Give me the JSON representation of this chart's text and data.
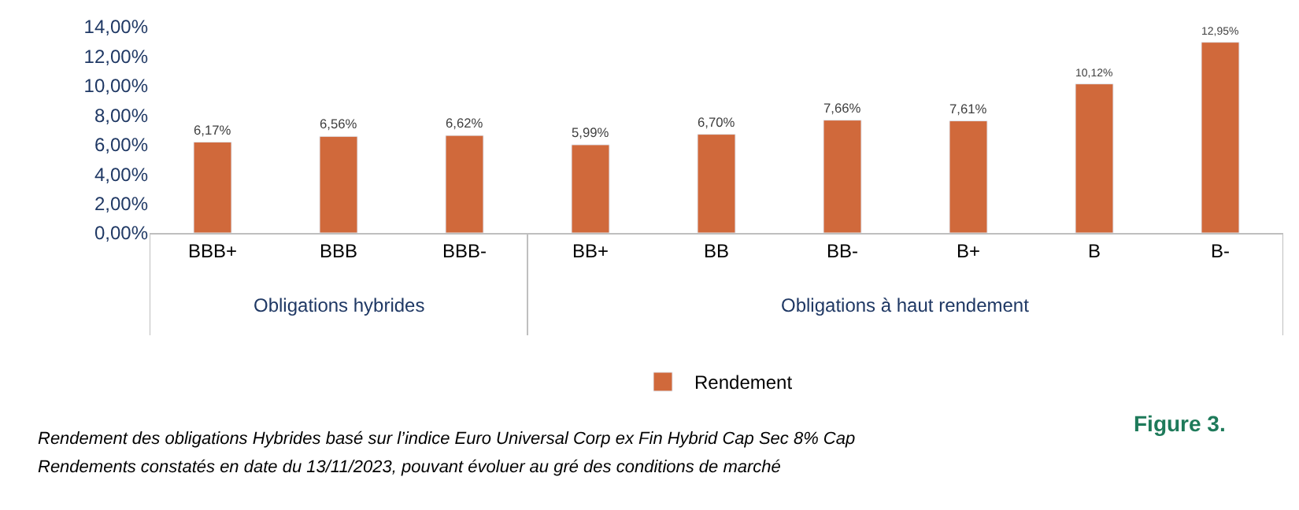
{
  "chart_data": {
    "type": "bar",
    "categories": [
      "BBB+",
      "BBB",
      "BBB-",
      "BB+",
      "BB",
      "BB-",
      "B+",
      "B",
      "B-"
    ],
    "series": [
      {
        "name": "Rendement",
        "color": "#d0693b",
        "values": [
          6.17,
          6.56,
          6.62,
          5.99,
          6.7,
          7.66,
          7.61,
          10.12,
          12.95
        ],
        "value_labels": [
          "6,17%",
          "6,56%",
          "6,62%",
          "5,99%",
          "6,70%",
          "7,66%",
          "7,61%",
          "10,12%",
          "12,95%"
        ]
      }
    ],
    "ylim": [
      0,
      14
    ],
    "yticks": [
      {
        "value": 0,
        "label": "0,00%"
      },
      {
        "value": 2,
        "label": "2,00%"
      },
      {
        "value": 4,
        "label": "4,00%"
      },
      {
        "value": 6,
        "label": "6,00%"
      },
      {
        "value": 8,
        "label": "8,00%"
      },
      {
        "value": 10,
        "label": "10,00%"
      },
      {
        "value": 12,
        "label": "12,00%"
      },
      {
        "value": 14,
        "label": "14,00%"
      }
    ],
    "legend": "bottom",
    "annotations": [
      "Obligations hybrides",
      "Obligations à haut rendement",
      "Rendement des obligations Hybrides basé sur l’indice Euro Universal Corp ex Fin Hybrid Cap Sec 8% Cap",
      "Rendements constatés en date du 13/11/2023, pouvant évoluer au gré des conditions de marché",
      "Figure 3."
    ]
  }
}
